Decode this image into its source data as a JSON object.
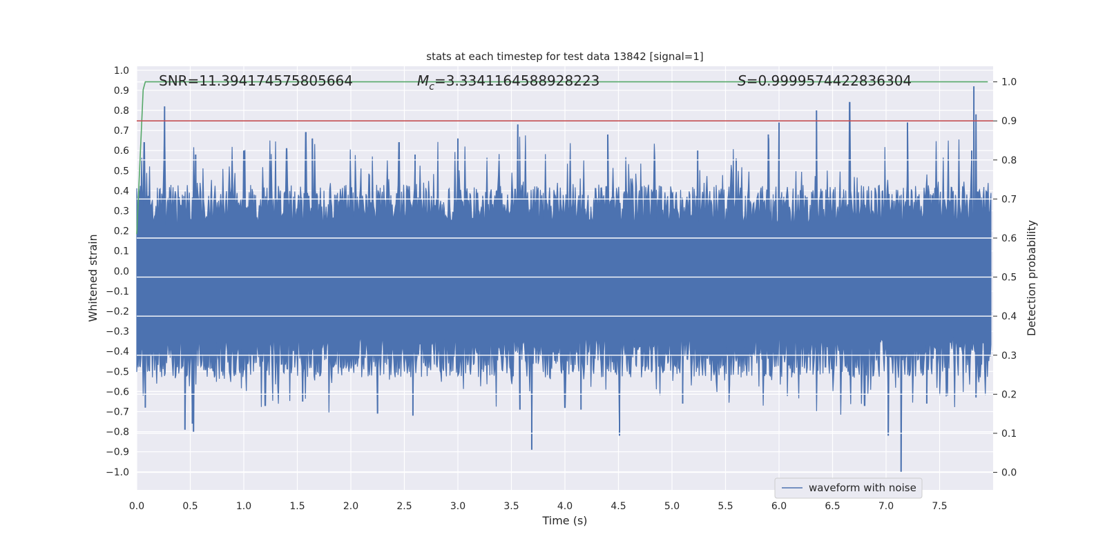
{
  "chart_data": {
    "type": "line",
    "title": "stats at each timestep for test data 13842 [signal=1]",
    "xlabel": "Time (s)",
    "ylabel": "Whitened strain",
    "y2label": "Detection probability",
    "xlim": [
      0.0,
      8.0
    ],
    "ylim": [
      -1.09,
      1.02
    ],
    "y2lim": [
      -0.045,
      1.04
    ],
    "x_ticks": [
      0.0,
      0.5,
      1.0,
      1.5,
      2.0,
      2.5,
      3.0,
      3.5,
      4.0,
      4.5,
      5.0,
      5.5,
      6.0,
      6.5,
      7.0,
      7.5
    ],
    "x_tick_labels": [
      "0.0",
      "0.5",
      "1.0",
      "1.5",
      "2.0",
      "2.5",
      "3.0",
      "3.5",
      "4.0",
      "4.5",
      "5.0",
      "5.5",
      "6.0",
      "6.5",
      "7.0",
      "7.5"
    ],
    "y_ticks": [
      1.0,
      0.9,
      0.8,
      0.7,
      0.6,
      0.5,
      0.4,
      0.3,
      0.2,
      0.1,
      0.0,
      -0.1,
      -0.2,
      -0.3,
      -0.4,
      -0.5,
      -0.6,
      -0.7,
      -0.8,
      -0.9,
      -1.0
    ],
    "y_tick_labels": [
      "1.0",
      "0.9",
      "0.8",
      "0.7",
      "0.6",
      "0.5",
      "0.4",
      "0.3",
      "0.2",
      "0.1",
      "0.0",
      "−0.1",
      "−0.2",
      "−0.3",
      "−0.4",
      "−0.5",
      "−0.6",
      "−0.7",
      "−0.8",
      "−0.9",
      "−1.0"
    ],
    "y2_ticks": [
      1.0,
      0.9,
      0.8,
      0.7,
      0.6,
      0.5,
      0.4,
      0.3,
      0.2,
      0.1,
      0.0
    ],
    "y2_tick_labels": [
      "1.0",
      "0.9",
      "0.8",
      "0.7",
      "0.6",
      "0.5",
      "0.4",
      "0.3",
      "0.2",
      "0.1",
      "0.0"
    ],
    "grid": true,
    "legend_position": "lower-right",
    "annotations": {
      "snr": "SNR=11.394174575805664",
      "mc_symbol": "M",
      "mc_sub": "c",
      "mc_value": "=3.3341164588928223",
      "s_symbol": "S",
      "s_value": "=0.9999574422836304"
    },
    "series": [
      {
        "name": "waveform with noise",
        "axis": "left",
        "color": "#4c72b0",
        "envelope_upper_typical": 0.3,
        "envelope_lower_typical": -0.4,
        "upper_spikes": [
          [
            0.07,
            0.64
          ],
          [
            0.26,
            0.82
          ],
          [
            0.55,
            0.58
          ],
          [
            1.0,
            0.6
          ],
          [
            1.4,
            0.61
          ],
          [
            1.58,
            0.69
          ],
          [
            1.64,
            0.66
          ],
          [
            2.45,
            0.64
          ],
          [
            2.6,
            0.58
          ],
          [
            3.0,
            0.66
          ],
          [
            3.56,
            0.73
          ],
          [
            4.4,
            0.68
          ],
          [
            5.24,
            0.6
          ],
          [
            5.6,
            0.56
          ],
          [
            5.9,
            0.68
          ],
          [
            6.0,
            0.74
          ],
          [
            6.35,
            0.8
          ],
          [
            6.66,
            0.84
          ],
          [
            7.2,
            0.74
          ],
          [
            7.8,
            0.6
          ],
          [
            7.82,
            0.92
          ],
          [
            7.84,
            0.78
          ]
        ],
        "lower_spikes": [
          [
            0.08,
            -0.68
          ],
          [
            0.45,
            -0.79
          ],
          [
            0.52,
            -0.76
          ],
          [
            0.53,
            -0.8
          ],
          [
            1.2,
            -0.67
          ],
          [
            1.55,
            -0.65
          ],
          [
            2.25,
            -0.71
          ],
          [
            2.58,
            -0.72
          ],
          [
            3.58,
            -0.69
          ],
          [
            3.69,
            -0.89
          ],
          [
            4.0,
            -0.68
          ],
          [
            4.15,
            -0.69
          ],
          [
            4.51,
            -0.82
          ],
          [
            5.1,
            -0.66
          ],
          [
            6.8,
            -0.67
          ],
          [
            7.02,
            -0.82
          ],
          [
            7.14,
            -1.0
          ],
          [
            7.38,
            -0.66
          ],
          [
            7.84,
            -0.63
          ]
        ]
      },
      {
        "name": "",
        "axis": "right",
        "color": "#55a868",
        "x": [
          0.0,
          0.06,
          0.08,
          0.15,
          0.5,
          1.0,
          7.95
        ],
        "y": [
          0.61,
          0.98,
          1.0,
          1.0,
          1.0,
          1.0,
          1.0
        ]
      },
      {
        "name": "",
        "axis": "right",
        "color": "#c44e52",
        "x": [
          0.0,
          8.0
        ],
        "y": [
          0.9,
          0.9
        ]
      }
    ]
  }
}
